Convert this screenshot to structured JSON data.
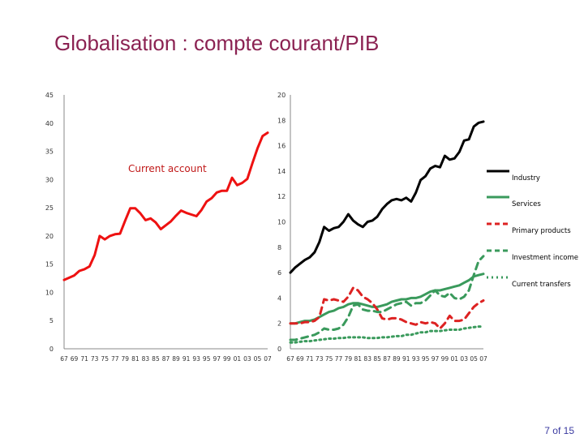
{
  "slide": {
    "title": "Globalisation : compte courant/PIB",
    "page_number": "7 of 15"
  },
  "chart_data": [
    {
      "type": "line",
      "title": "",
      "xlabel": "",
      "ylabel": "",
      "ylim": [
        0,
        45
      ],
      "yticks": [
        0,
        5,
        10,
        15,
        20,
        25,
        30,
        35,
        40,
        45
      ],
      "xlim": [
        1967,
        2007
      ],
      "xtick_labels": [
        "67",
        "69",
        "71",
        "73",
        "75",
        "77",
        "79",
        "81",
        "83",
        "85",
        "87",
        "89",
        "91",
        "93",
        "95",
        "97",
        "99",
        "01",
        "03",
        "05",
        "07"
      ],
      "grid": false,
      "annotation": "Current account",
      "series": [
        {
          "name": "Current account",
          "color": "#ee1111",
          "x": [
            1967,
            1968,
            1969,
            1970,
            1971,
            1972,
            1973,
            1974,
            1975,
            1976,
            1977,
            1978,
            1979,
            1980,
            1981,
            1982,
            1983,
            1984,
            1985,
            1986,
            1987,
            1988,
            1989,
            1990,
            1991,
            1992,
            1993,
            1994,
            1995,
            1996,
            1997,
            1998,
            1999,
            2000,
            2001,
            2002,
            2003,
            2004,
            2005,
            2006,
            2007
          ],
          "y": [
            12.2,
            12.6,
            13.0,
            13.8,
            14.1,
            14.6,
            16.6,
            20.0,
            19.4,
            20.0,
            20.3,
            20.4,
            22.7,
            24.9,
            24.9,
            24.0,
            22.8,
            23.1,
            22.4,
            21.2,
            21.9,
            22.6,
            23.6,
            24.5,
            24.1,
            23.8,
            23.5,
            24.6,
            26.1,
            26.7,
            27.7,
            28.0,
            28.0,
            30.3,
            29.0,
            29.4,
            30.1,
            32.9,
            35.5,
            37.7,
            38.3
          ]
        }
      ]
    },
    {
      "type": "line",
      "title": "",
      "xlabel": "",
      "ylabel": "",
      "ylim": [
        0,
        20
      ],
      "yticks": [
        0,
        2,
        4,
        6,
        8,
        10,
        12,
        14,
        16,
        18,
        20
      ],
      "xlim": [
        1967,
        2007
      ],
      "xtick_labels": [
        "67",
        "69",
        "71",
        "73",
        "75",
        "77",
        "79",
        "81",
        "83",
        "85",
        "87",
        "89",
        "91",
        "93",
        "95",
        "97",
        "99",
        "01",
        "03",
        "05",
        "07"
      ],
      "grid": false,
      "legend": "right",
      "series": [
        {
          "name": "Industry",
          "color": "#000000",
          "dash": "solid",
          "x": [
            1967,
            1968,
            1969,
            1970,
            1971,
            1972,
            1973,
            1974,
            1975,
            1976,
            1977,
            1978,
            1979,
            1980,
            1981,
            1982,
            1983,
            1984,
            1985,
            1986,
            1987,
            1988,
            1989,
            1990,
            1991,
            1992,
            1993,
            1994,
            1995,
            1996,
            1997,
            1998,
            1999,
            2000,
            2001,
            2002,
            2003,
            2004,
            2005,
            2006,
            2007
          ],
          "y": [
            6.0,
            6.4,
            6.7,
            7.0,
            7.2,
            7.6,
            8.4,
            9.6,
            9.3,
            9.5,
            9.6,
            10.0,
            10.6,
            10.1,
            9.8,
            9.6,
            10.0,
            10.1,
            10.4,
            11.0,
            11.4,
            11.7,
            11.8,
            11.7,
            11.9,
            11.6,
            12.3,
            13.3,
            13.6,
            14.2,
            14.4,
            14.3,
            15.2,
            14.9,
            15.0,
            15.5,
            16.4,
            16.5,
            17.5,
            17.8,
            17.9
          ]
        },
        {
          "name": "Services",
          "color": "#3a9a5c",
          "dash": "solid",
          "x": [
            1967,
            1968,
            1969,
            1970,
            1971,
            1972,
            1973,
            1974,
            1975,
            1976,
            1977,
            1978,
            1979,
            1980,
            1981,
            1982,
            1983,
            1984,
            1985,
            1986,
            1987,
            1988,
            1989,
            1990,
            1991,
            1992,
            1993,
            1994,
            1995,
            1996,
            1997,
            1998,
            1999,
            2000,
            2001,
            2002,
            2003,
            2004,
            2005,
            2006,
            2007
          ],
          "y": [
            2.0,
            2.0,
            2.1,
            2.2,
            2.2,
            2.3,
            2.5,
            2.7,
            2.9,
            3.0,
            3.2,
            3.3,
            3.5,
            3.6,
            3.6,
            3.5,
            3.4,
            3.3,
            3.3,
            3.4,
            3.5,
            3.7,
            3.8,
            3.9,
            3.9,
            4.0,
            4.0,
            4.1,
            4.3,
            4.5,
            4.6,
            4.6,
            4.7,
            4.8,
            4.9,
            5.0,
            5.2,
            5.4,
            5.7,
            5.8,
            5.9
          ]
        },
        {
          "name": "Primary products",
          "color": "#dd2222",
          "dash": "dashed",
          "x": [
            1967,
            1968,
            1969,
            1970,
            1971,
            1972,
            1973,
            1974,
            1975,
            1976,
            1977,
            1978,
            1979,
            1980,
            1981,
            1982,
            1983,
            1984,
            1985,
            1986,
            1987,
            1988,
            1989,
            1990,
            1991,
            1992,
            1993,
            1994,
            1995,
            1996,
            1997,
            1998,
            1999,
            2000,
            2001,
            2002,
            2003,
            2004,
            2005,
            2006,
            2007
          ],
          "y": [
            2.0,
            2.0,
            2.0,
            2.1,
            2.1,
            2.2,
            2.5,
            3.9,
            3.8,
            3.9,
            3.8,
            3.7,
            4.1,
            4.8,
            4.6,
            4.1,
            3.9,
            3.6,
            3.1,
            2.4,
            2.3,
            2.4,
            2.4,
            2.3,
            2.1,
            2.0,
            1.9,
            2.1,
            2.0,
            2.1,
            2.0,
            1.6,
            2.0,
            2.6,
            2.2,
            2.2,
            2.3,
            2.8,
            3.3,
            3.6,
            3.8
          ]
        },
        {
          "name": "Investment income",
          "color": "#3a9a5c",
          "dash": "dashed",
          "x": [
            1967,
            1968,
            1969,
            1970,
            1971,
            1972,
            1973,
            1974,
            1975,
            1976,
            1977,
            1978,
            1979,
            1980,
            1981,
            1982,
            1983,
            1984,
            1985,
            1986,
            1987,
            1988,
            1989,
            1990,
            1991,
            1992,
            1993,
            1994,
            1995,
            1996,
            1997,
            1998,
            1999,
            2000,
            2001,
            2002,
            2003,
            2004,
            2005,
            2006,
            2007
          ],
          "y": [
            0.7,
            0.7,
            0.8,
            0.9,
            1.0,
            1.1,
            1.3,
            1.6,
            1.5,
            1.5,
            1.6,
            1.9,
            2.5,
            3.4,
            3.5,
            3.1,
            3.0,
            3.0,
            2.9,
            2.9,
            3.1,
            3.3,
            3.5,
            3.6,
            3.7,
            3.4,
            3.6,
            3.6,
            3.8,
            4.2,
            4.6,
            4.2,
            4.1,
            4.4,
            4.0,
            3.9,
            4.1,
            4.6,
            5.8,
            6.9,
            7.3
          ]
        },
        {
          "name": "Current transfers",
          "color": "#3a9a5c",
          "dash": "dotted",
          "x": [
            1967,
            1968,
            1969,
            1970,
            1971,
            1972,
            1973,
            1974,
            1975,
            1976,
            1977,
            1978,
            1979,
            1980,
            1981,
            1982,
            1983,
            1984,
            1985,
            1986,
            1987,
            1988,
            1989,
            1990,
            1991,
            1992,
            1993,
            1994,
            1995,
            1996,
            1997,
            1998,
            1999,
            2000,
            2001,
            2002,
            2003,
            2004,
            2005,
            2006,
            2007
          ],
          "y": [
            0.5,
            0.5,
            0.55,
            0.6,
            0.6,
            0.65,
            0.7,
            0.75,
            0.8,
            0.8,
            0.85,
            0.85,
            0.9,
            0.9,
            0.9,
            0.9,
            0.85,
            0.85,
            0.85,
            0.9,
            0.9,
            0.95,
            1.0,
            1.0,
            1.1,
            1.1,
            1.2,
            1.3,
            1.3,
            1.4,
            1.4,
            1.4,
            1.45,
            1.5,
            1.5,
            1.5,
            1.6,
            1.65,
            1.7,
            1.75,
            1.75
          ]
        }
      ]
    }
  ]
}
